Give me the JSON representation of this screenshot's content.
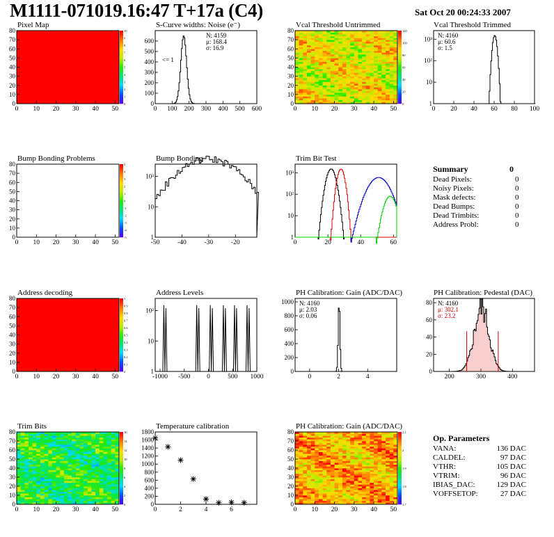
{
  "header": {
    "title": "M1111-071019.16:47 T+17a (C4)",
    "date": "Sat Oct 20 00:24:33 2007"
  },
  "chart_data": [
    {
      "id": "pixel_map",
      "type": "heatmap",
      "title": "Pixel Map",
      "xticks": [
        "0",
        "10",
        "20",
        "30",
        "40",
        "50"
      ],
      "yticks": [
        "0",
        "10",
        "20",
        "30",
        "40",
        "50",
        "60",
        "70",
        "80"
      ],
      "zticks": [
        "0",
        "1",
        "2",
        "3",
        "4",
        "5",
        "6",
        "7",
        "8",
        "9",
        "10"
      ],
      "fill": "uniform",
      "value": 10
    },
    {
      "id": "scurve",
      "type": "line",
      "title": "S-Curve widths: Noise (e⁻)",
      "xticks": [
        "0",
        "100",
        "200",
        "300",
        "400",
        "500",
        "600"
      ],
      "yticks": [
        "0",
        "100",
        "200",
        "300",
        "400",
        "500",
        "600"
      ],
      "xlim": [
        0,
        600
      ],
      "ylim": [
        0,
        700
      ],
      "stats": {
        "n": "N: 4159",
        "mu": "μ: 168.4",
        "sigma": "σ: 16.9"
      },
      "annotation": "<= 1",
      "mean": 168.4,
      "std": 16.9,
      "peak": 650
    },
    {
      "id": "vcal_untrimmed",
      "type": "heatmap",
      "title": "Vcal Threshold Untrimmed",
      "xticks": [
        "0",
        "10",
        "20",
        "30",
        "40",
        "50"
      ],
      "yticks": [
        "0",
        "10",
        "20",
        "30",
        "40",
        "50",
        "60",
        "70",
        "80"
      ],
      "zticks": [
        "0",
        "20",
        "40",
        "60",
        "80",
        "100",
        "120"
      ],
      "fill": "noise",
      "low": 0.55,
      "high": 0.85
    },
    {
      "id": "vcal_trimmed",
      "type": "line",
      "title": "Vcal Threshold Trimmed",
      "log": true,
      "xticks": [
        "0",
        "20",
        "40",
        "60",
        "80",
        "100"
      ],
      "yticks": [
        "1",
        "10",
        "10²",
        "10³"
      ],
      "xlim": [
        0,
        100
      ],
      "stats": {
        "n": "N: 4160",
        "mu": "μ: 60.6",
        "sigma": "σ:  1.5"
      },
      "mean": 60.6,
      "std": 1.5,
      "peak": 1500
    },
    {
      "id": "bump_problems",
      "type": "heatmap",
      "title": "Bump Bonding Problems",
      "xticks": [
        "0",
        "10",
        "20",
        "30",
        "40",
        "50"
      ],
      "yticks": [
        "0",
        "10",
        "20",
        "30",
        "40",
        "50",
        "60",
        "70",
        "80"
      ],
      "zticks": [
        "-5",
        "-4",
        "-3",
        "-2",
        "-1",
        "0",
        "1",
        "2",
        "3",
        "4",
        "5"
      ],
      "fill": "empty"
    },
    {
      "id": "bump_bonding",
      "type": "line",
      "title": "Bump Bonding",
      "log": true,
      "xticks": [
        "-50",
        "-40",
        "-30",
        "-20"
      ],
      "yticks": [
        "1",
        "10",
        "10²"
      ],
      "xlim": [
        -50,
        -12
      ],
      "mean": -30,
      "std": 8,
      "peak": 400
    },
    {
      "id": "trim_bit_test",
      "type": "line",
      "title": "Trim Bit Test",
      "log": true,
      "xticks": [
        "0",
        "20",
        "40",
        "60"
      ],
      "yticks": [
        "1",
        "10",
        "10²",
        "10³"
      ],
      "xlim": [
        0,
        62
      ],
      "series": [
        {
          "color": "#000000",
          "mean": 22,
          "std": 2.0,
          "peak": 1500
        },
        {
          "color": "#dd0000",
          "mean": 28,
          "std": 1.6,
          "peak": 1500
        },
        {
          "color": "#0000cc",
          "mean": 51,
          "std": 4.5,
          "peak": 600
        },
        {
          "color": "#00cc00",
          "mean": 58,
          "std": 2.6,
          "peak": 80
        }
      ]
    },
    {
      "id": "address_decoding",
      "type": "heatmap",
      "title": "Address decoding",
      "xticks": [
        "0",
        "10",
        "20",
        "30",
        "40",
        "50"
      ],
      "yticks": [
        "0",
        "10",
        "20",
        "30",
        "40",
        "50",
        "60",
        "70",
        "80"
      ],
      "zticks": [
        "0",
        "0.1",
        "0.2",
        "0.3",
        "0.4",
        "0.5",
        "0.6",
        "0.7",
        "0.8",
        "0.9",
        "1"
      ],
      "fill": "uniform",
      "value": 1
    },
    {
      "id": "address_levels",
      "type": "line",
      "title": "Address Levels",
      "log": true,
      "xticks": [
        "-1000",
        "-500",
        "0",
        "500",
        "1000"
      ],
      "yticks": [
        "1",
        "10",
        "10²"
      ],
      "xlim": [
        -1100,
        1000
      ],
      "spikes": [
        -900,
        -220,
        60,
        330,
        560,
        820
      ]
    },
    {
      "id": "ph_gain",
      "type": "line",
      "title": "PH Calibration: Gain (ADC/DAC)",
      "xticks": [
        "0",
        "2",
        "4"
      ],
      "yticks": [
        "0",
        "200",
        "400",
        "600",
        "800",
        "1000"
      ],
      "xlim": [
        -1,
        6
      ],
      "ylim": [
        0,
        1050
      ],
      "stats": {
        "n": "N: 4160",
        "mu": "μ: 2.03",
        "sigma": "σ: 0.06"
      },
      "mean": 2.03,
      "std": 0.06,
      "peak": 1000
    },
    {
      "id": "ph_pedestal",
      "type": "line",
      "title": "PH Calibration: Pedestal (DAC)",
      "xticks": [
        "200",
        "300",
        "400"
      ],
      "yticks": [
        "0",
        "20",
        "40",
        "60",
        "80"
      ],
      "xlim": [
        150,
        470
      ],
      "ylim": [
        0,
        85
      ],
      "stats": {
        "n": "N: 4160",
        "mu": "μ: 302.1",
        "sigma": "σ: 23.2"
      },
      "mean": 302.1,
      "std": 23.2,
      "peak": 78,
      "cuts": [
        255,
        355
      ]
    },
    {
      "id": "trim_bits",
      "type": "heatmap",
      "title": "Trim Bits",
      "xticks": [
        "0",
        "10",
        "20",
        "30",
        "40",
        "50"
      ],
      "yticks": [
        "0",
        "10",
        "20",
        "30",
        "40",
        "50",
        "60",
        "70",
        "80"
      ],
      "zticks": [
        "0",
        "2",
        "4",
        "6",
        "8",
        "10",
        "12",
        "14",
        "16"
      ],
      "fill": "noise",
      "low": 0.28,
      "high": 0.6
    },
    {
      "id": "temp_calib",
      "type": "scatter",
      "title": "Temperature calibration",
      "xticks": [
        "0",
        "2",
        "4",
        "6"
      ],
      "yticks": [
        "0",
        "200",
        "400",
        "600",
        "800",
        "1000",
        "1200",
        "1400",
        "1600",
        "1800"
      ],
      "xlim": [
        0,
        8
      ],
      "ylim": [
        0,
        1800
      ],
      "x": [
        0,
        1,
        2,
        3,
        4,
        5,
        6,
        7
      ],
      "y": [
        1650,
        1430,
        1100,
        630,
        130,
        40,
        50,
        40
      ]
    },
    {
      "id": "ph_gain_map",
      "type": "heatmap",
      "title": "PH Calibration: Gain (ADC/DAC)",
      "xticks": [
        "0",
        "10",
        "20",
        "30",
        "40",
        "50"
      ],
      "yticks": [
        "0",
        "10",
        "20",
        "30",
        "40",
        "50",
        "60",
        "70",
        "80"
      ],
      "zticks": [
        "1.7",
        "1.8",
        "1.9",
        "2",
        "2.1"
      ],
      "fill": "noise",
      "low": 0.65,
      "high": 0.95
    }
  ],
  "summary": {
    "title": "Summary",
    "total": "0",
    "rows": [
      {
        "label": "Dead Pixels:",
        "value": "0"
      },
      {
        "label": "Noisy Pixels:",
        "value": "0"
      },
      {
        "label": "Mask defects:",
        "value": "0"
      },
      {
        "label": "Dead Bumps:",
        "value": "0"
      },
      {
        "label": "Dead Trimbits:",
        "value": "0"
      },
      {
        "label": "Address Probl:",
        "value": "0"
      }
    ]
  },
  "op_params": {
    "title": "Op. Parameters",
    "rows": [
      {
        "label": "VANA:",
        "value": "136 DAC"
      },
      {
        "label": "CALDEL:",
        "value": "97 DAC"
      },
      {
        "label": "VTHR:",
        "value": "105 DAC"
      },
      {
        "label": "VTRIM:",
        "value": "96 DAC"
      },
      {
        "label": "IBIAS_DAC:",
        "value": "129 DAC"
      },
      {
        "label": "VOFFSETOP:",
        "value": "27 DAC"
      }
    ]
  }
}
